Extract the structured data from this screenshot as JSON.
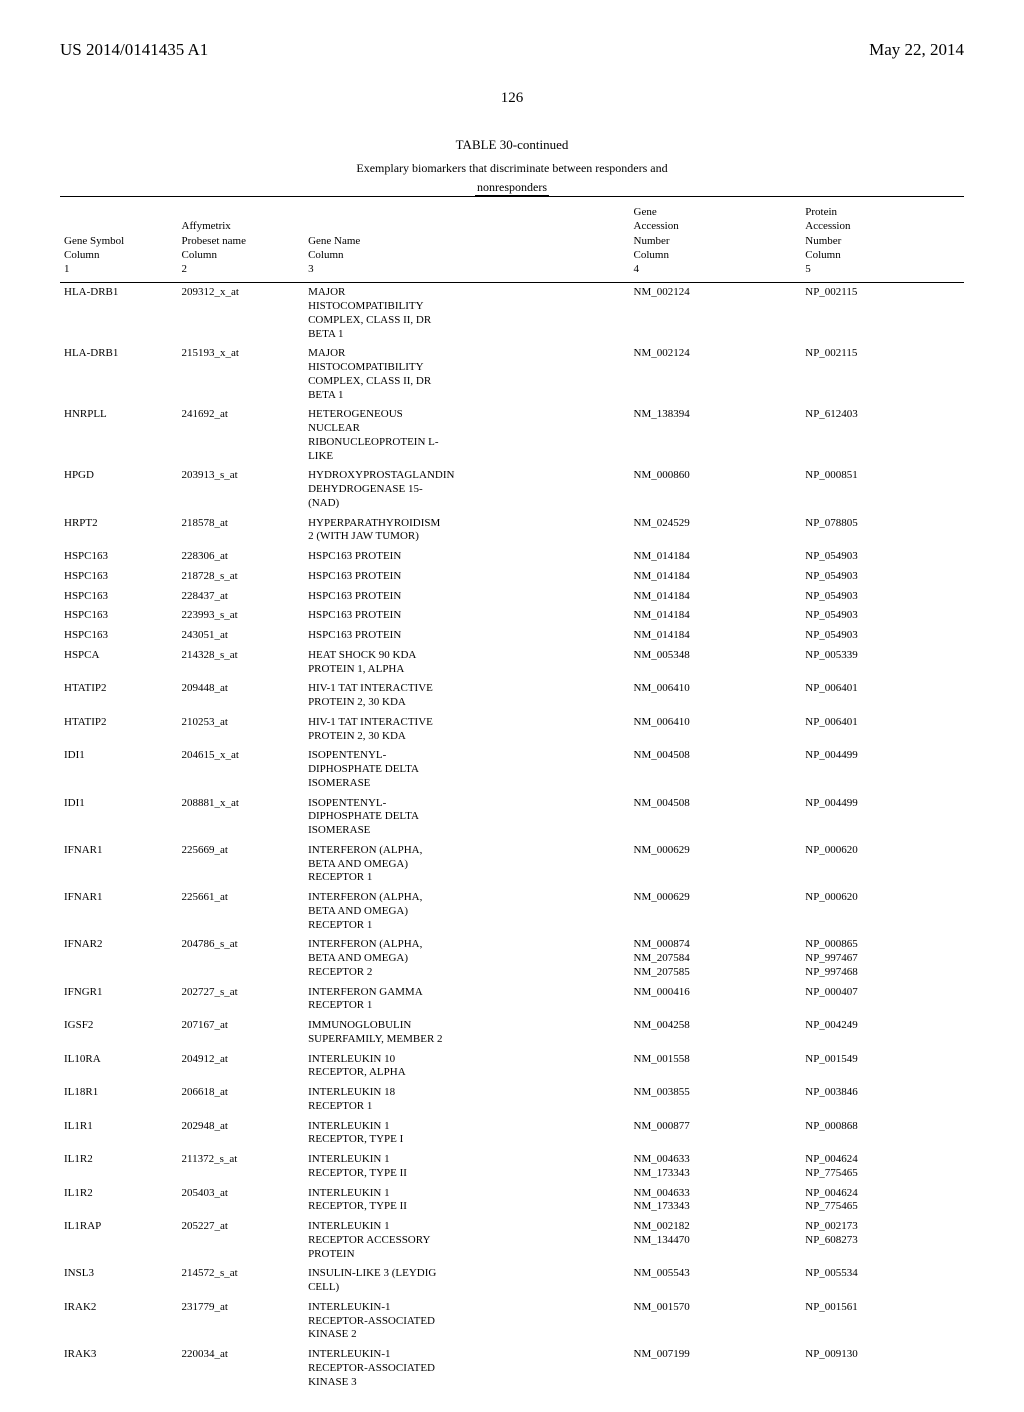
{
  "header": {
    "pub_number": "US 2014/0141435 A1",
    "pub_date": "May 22, 2014"
  },
  "page_number": "126",
  "table": {
    "title": "TABLE 30-continued",
    "caption_line1": "Exemplary biomarkers that discriminate between responders and",
    "caption_line2": "nonresponders",
    "columns": [
      {
        "h1": "Gene Symbol",
        "h2": "Column",
        "h3": "1"
      },
      {
        "h1": "Affymetrix",
        "h2": "Probeset name",
        "h3": "Column",
        "h4": "2"
      },
      {
        "h1": "Gene Name",
        "h2": "Column",
        "h3": "3"
      },
      {
        "h1": "Gene",
        "h2": "Accession",
        "h3": "Number",
        "h4": "Column",
        "h5": "4"
      },
      {
        "h1": "Protein",
        "h2": "Accession",
        "h3": "Number",
        "h4": "Column",
        "h5": "5"
      }
    ],
    "rows": [
      {
        "sym": "HLA-DRB1",
        "probe": "209312_x_at",
        "name": "MAJOR\nHISTOCOMPATIBILITY\nCOMPLEX, CLASS II, DR\nBETA 1",
        "gene": "NM_002124",
        "prot": "NP_002115"
      },
      {
        "sym": "HLA-DRB1",
        "probe": "215193_x_at",
        "name": "MAJOR\nHISTOCOMPATIBILITY\nCOMPLEX, CLASS II, DR\nBETA 1",
        "gene": "NM_002124",
        "prot": "NP_002115"
      },
      {
        "sym": "HNRPLL",
        "probe": "241692_at",
        "name": "HETEROGENEOUS\nNUCLEAR\nRIBONUCLEOPROTEIN L-\nLIKE",
        "gene": "NM_138394",
        "prot": "NP_612403"
      },
      {
        "sym": "HPGD",
        "probe": "203913_s_at",
        "name": "HYDROXYPROSTAGLANDIN\nDEHYDROGENASE 15-\n(NAD)",
        "gene": "NM_000860",
        "prot": "NP_000851"
      },
      {
        "sym": "HRPT2",
        "probe": "218578_at",
        "name": "HYPERPARATHYROIDISM\n2 (WITH JAW TUMOR)",
        "gene": "NM_024529",
        "prot": "NP_078805"
      },
      {
        "sym": "HSPC163",
        "probe": "228306_at",
        "name": "HSPC163 PROTEIN",
        "gene": "NM_014184",
        "prot": "NP_054903"
      },
      {
        "sym": "HSPC163",
        "probe": "218728_s_at",
        "name": "HSPC163 PROTEIN",
        "gene": "NM_014184",
        "prot": "NP_054903"
      },
      {
        "sym": "HSPC163",
        "probe": "228437_at",
        "name": "HSPC163 PROTEIN",
        "gene": "NM_014184",
        "prot": "NP_054903"
      },
      {
        "sym": "HSPC163",
        "probe": "223993_s_at",
        "name": "HSPC163 PROTEIN",
        "gene": "NM_014184",
        "prot": "NP_054903"
      },
      {
        "sym": "HSPC163",
        "probe": "243051_at",
        "name": "HSPC163 PROTEIN",
        "gene": "NM_014184",
        "prot": "NP_054903"
      },
      {
        "sym": "HSPCA",
        "probe": "214328_s_at",
        "name": "HEAT SHOCK 90 KDA\nPROTEIN 1, ALPHA",
        "gene": "NM_005348",
        "prot": "NP_005339"
      },
      {
        "sym": "HTATIP2",
        "probe": "209448_at",
        "name": "HIV-1 TAT INTERACTIVE\nPROTEIN 2, 30 KDA",
        "gene": "NM_006410",
        "prot": "NP_006401"
      },
      {
        "sym": "HTATIP2",
        "probe": "210253_at",
        "name": "HIV-1 TAT INTERACTIVE\nPROTEIN 2, 30 KDA",
        "gene": "NM_006410",
        "prot": "NP_006401"
      },
      {
        "sym": "IDI1",
        "probe": "204615_x_at",
        "name": "ISOPENTENYL-\nDIPHOSPHATE DELTA\nISOMERASE",
        "gene": "NM_004508",
        "prot": "NP_004499"
      },
      {
        "sym": "IDI1",
        "probe": "208881_x_at",
        "name": "ISOPENTENYL-\nDIPHOSPHATE DELTA\nISOMERASE",
        "gene": "NM_004508",
        "prot": "NP_004499"
      },
      {
        "sym": "IFNAR1",
        "probe": "225669_at",
        "name": "INTERFERON (ALPHA,\nBETA AND OMEGA)\nRECEPTOR 1",
        "gene": "NM_000629",
        "prot": "NP_000620"
      },
      {
        "sym": "IFNAR1",
        "probe": "225661_at",
        "name": "INTERFERON (ALPHA,\nBETA AND OMEGA)\nRECEPTOR 1",
        "gene": "NM_000629",
        "prot": "NP_000620"
      },
      {
        "sym": "IFNAR2",
        "probe": "204786_s_at",
        "name": "INTERFERON (ALPHA,\nBETA AND OMEGA)\nRECEPTOR 2",
        "gene": "NM_000874\nNM_207584\nNM_207585",
        "prot": "NP_000865\nNP_997467\nNP_997468"
      },
      {
        "sym": "IFNGR1",
        "probe": "202727_s_at",
        "name": "INTERFERON GAMMA\nRECEPTOR 1",
        "gene": "NM_000416",
        "prot": "NP_000407"
      },
      {
        "sym": "IGSF2",
        "probe": "207167_at",
        "name": "IMMUNOGLOBULIN\nSUPERFAMILY, MEMBER 2",
        "gene": "NM_004258",
        "prot": "NP_004249"
      },
      {
        "sym": "IL10RA",
        "probe": "204912_at",
        "name": "INTERLEUKIN 10\nRECEPTOR, ALPHA",
        "gene": "NM_001558",
        "prot": "NP_001549"
      },
      {
        "sym": "IL18R1",
        "probe": "206618_at",
        "name": "INTERLEUKIN 18\nRECEPTOR 1",
        "gene": "NM_003855",
        "prot": "NP_003846"
      },
      {
        "sym": "IL1R1",
        "probe": "202948_at",
        "name": "INTERLEUKIN 1\nRECEPTOR, TYPE I",
        "gene": "NM_000877",
        "prot": "NP_000868"
      },
      {
        "sym": "IL1R2",
        "probe": "211372_s_at",
        "name": "INTERLEUKIN 1\nRECEPTOR, TYPE II",
        "gene": "NM_004633\nNM_173343",
        "prot": "NP_004624\nNP_775465"
      },
      {
        "sym": "IL1R2",
        "probe": "205403_at",
        "name": "INTERLEUKIN 1\nRECEPTOR, TYPE II",
        "gene": "NM_004633\nNM_173343",
        "prot": "NP_004624\nNP_775465"
      },
      {
        "sym": "IL1RAP",
        "probe": "205227_at",
        "name": "INTERLEUKIN 1\nRECEPTOR ACCESSORY\nPROTEIN",
        "gene": "NM_002182\nNM_134470",
        "prot": "NP_002173\nNP_608273"
      },
      {
        "sym": "INSL3",
        "probe": "214572_s_at",
        "name": "INSULIN-LIKE 3 (LEYDIG\nCELL)",
        "gene": "NM_005543",
        "prot": "NP_005534"
      },
      {
        "sym": "IRAK2",
        "probe": "231779_at",
        "name": "INTERLEUKIN-1\nRECEPTOR-ASSOCIATED\nKINASE 2",
        "gene": "NM_001570",
        "prot": "NP_001561"
      },
      {
        "sym": "IRAK3",
        "probe": "220034_at",
        "name": "INTERLEUKIN-1\nRECEPTOR-ASSOCIATED\nKINASE 3",
        "gene": "NM_007199",
        "prot": "NP_009130"
      }
    ]
  }
}
